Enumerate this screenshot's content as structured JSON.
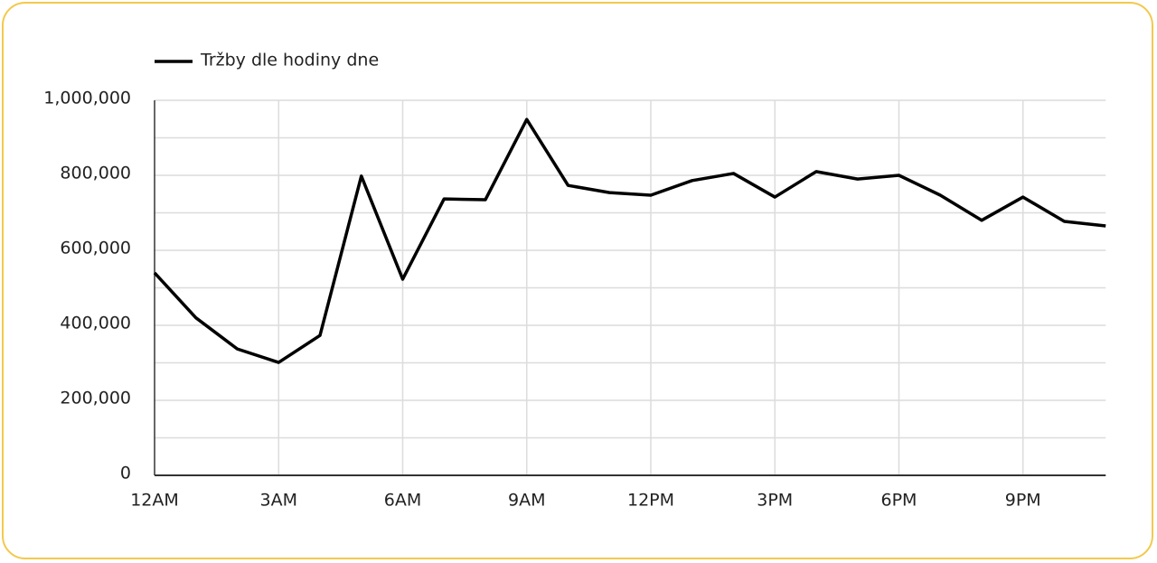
{
  "chart_data": {
    "type": "line",
    "categories": [
      "12AM",
      null,
      null,
      "3AM",
      null,
      null,
      "6AM",
      null,
      null,
      "9AM",
      null,
      null,
      "12PM",
      null,
      null,
      "3PM",
      null,
      null,
      "6PM",
      null,
      null,
      "9PM",
      null,
      null
    ],
    "series": [
      {
        "name": "Tržby dle hodiny dne",
        "color": "#000000",
        "values": [
          540000,
          420000,
          337000,
          301000,
          373000,
          798000,
          523000,
          737000,
          735000,
          949000,
          773000,
          754000,
          747000,
          786000,
          805000,
          742000,
          810000,
          790000,
          800000,
          747000,
          680000,
          742000,
          677000,
          665000
        ]
      }
    ],
    "ylim": [
      0,
      1000000
    ],
    "yticks": [
      0,
      {
        "value": 200000,
        "label": "200,000"
      },
      {
        "value": 400000,
        "label": "400,000"
      },
      {
        "value": 600000,
        "label": "600,000"
      },
      {
        "value": 800000,
        "label": "800,000"
      },
      {
        "value": 1000000,
        "label": "1,000,000"
      }
    ],
    "y_minor_ticks": [
      100000,
      300000,
      500000,
      700000,
      900000
    ],
    "grid": true,
    "legend": "top-left"
  }
}
